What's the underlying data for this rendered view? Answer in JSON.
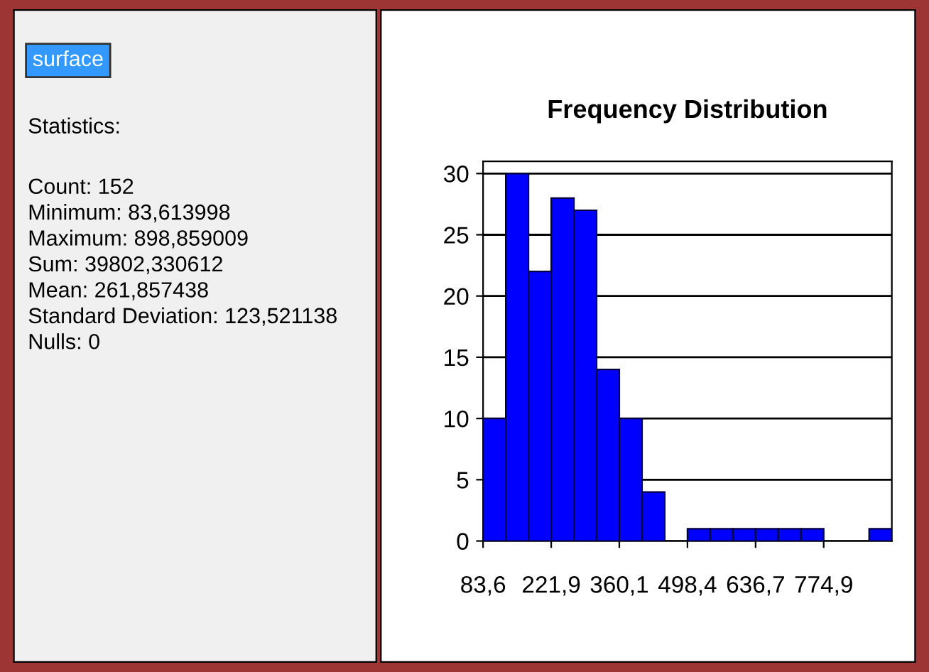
{
  "chart_data": {
    "type": "histogram",
    "title": "Frequency Distribution",
    "bins": [
      83.6,
      129.7,
      175.8,
      221.9,
      268.0,
      314.0,
      360.1,
      406.2,
      452.3,
      498.4,
      544.5,
      590.6,
      636.7,
      682.8,
      728.8,
      774.9,
      821.0,
      867.1,
      913.2
    ],
    "values": [
      10,
      30,
      22,
      28,
      27,
      14,
      10,
      4,
      0,
      1,
      1,
      1,
      1,
      1,
      1,
      0,
      0,
      1
    ],
    "color": "#0000ff",
    "xlim": [
      83.6,
      913.2
    ],
    "xticks": [
      {
        "value": 83.6,
        "label": "83,6"
      },
      {
        "value": 221.9,
        "label": "221,9"
      },
      {
        "value": 360.1,
        "label": "360,1"
      },
      {
        "value": 498.4,
        "label": "498,4"
      },
      {
        "value": 636.7,
        "label": "636,7"
      },
      {
        "value": 774.9,
        "label": "774,9"
      }
    ],
    "ylim": [
      0,
      31
    ],
    "yticks": [
      0,
      5,
      10,
      15,
      20,
      25,
      30
    ],
    "grid": "y",
    "annotations": [
      "surface",
      "Statistics:",
      "Count: 152",
      "Minimum: 83,613998",
      "Maximum: 898,859009",
      "Sum: 39802,330612",
      "Mean: 261,857438",
      "Standard Deviation: 123,521138",
      "Nulls: 0"
    ]
  }
}
